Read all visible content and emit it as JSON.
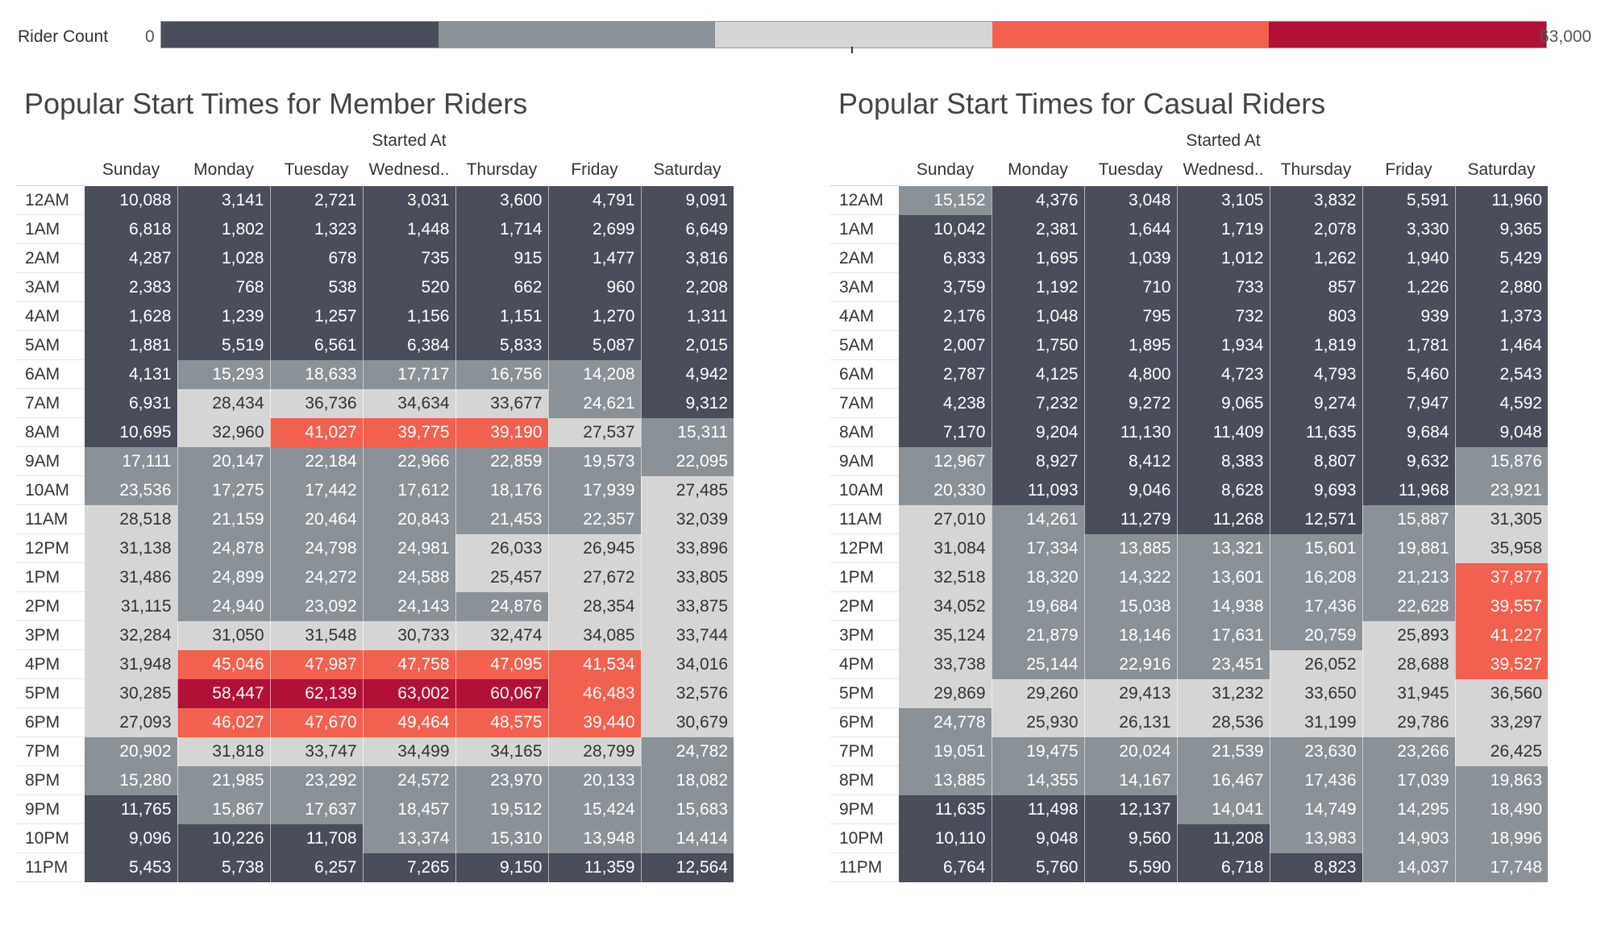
{
  "legend": {
    "title": "Rider Count",
    "min_label": "0",
    "max_label": "63,000",
    "min": 0,
    "max": 63000,
    "colors": [
      "#4a4e5b",
      "#8a9197",
      "#d5d5d5",
      "#f2604f",
      "#b11136"
    ]
  },
  "text_colors": {
    "light": "#ffffff",
    "dark": "#333333"
  },
  "chart_data": [
    {
      "type": "heatmap",
      "title": "Popular Start Times for Member Riders",
      "column_title": "Started At",
      "columns": [
        "Sunday",
        "Monday",
        "Tuesday",
        "Wednesd..",
        "Thursday",
        "Friday",
        "Saturday"
      ],
      "rows": [
        "12AM",
        "1AM",
        "2AM",
        "3AM",
        "4AM",
        "5AM",
        "6AM",
        "7AM",
        "8AM",
        "9AM",
        "10AM",
        "11AM",
        "12PM",
        "1PM",
        "2PM",
        "3PM",
        "4PM",
        "5PM",
        "6PM",
        "7PM",
        "8PM",
        "9PM",
        "10PM",
        "11PM"
      ],
      "values": [
        [
          10088,
          3141,
          2721,
          3031,
          3600,
          4791,
          9091
        ],
        [
          6818,
          1802,
          1323,
          1448,
          1714,
          2699,
          6649
        ],
        [
          4287,
          1028,
          678,
          735,
          915,
          1477,
          3816
        ],
        [
          2383,
          768,
          538,
          520,
          662,
          960,
          2208
        ],
        [
          1628,
          1239,
          1257,
          1156,
          1151,
          1270,
          1311
        ],
        [
          1881,
          5519,
          6561,
          6384,
          5833,
          5087,
          2015
        ],
        [
          4131,
          15293,
          18633,
          17717,
          16756,
          14208,
          4942
        ],
        [
          6931,
          28434,
          36736,
          34634,
          33677,
          24621,
          9312
        ],
        [
          10695,
          32960,
          41027,
          39775,
          39190,
          27537,
          15311
        ],
        [
          17111,
          20147,
          22184,
          22966,
          22859,
          19573,
          22095
        ],
        [
          23536,
          17275,
          17442,
          17612,
          18176,
          17939,
          27485
        ],
        [
          28518,
          21159,
          20464,
          20843,
          21453,
          22357,
          32039
        ],
        [
          31138,
          24878,
          24798,
          24981,
          26033,
          26945,
          33896
        ],
        [
          31486,
          24899,
          24272,
          24588,
          25457,
          27672,
          33805
        ],
        [
          31115,
          24940,
          23092,
          24143,
          24876,
          28354,
          33875
        ],
        [
          32284,
          31050,
          31548,
          30733,
          32474,
          34085,
          33744
        ],
        [
          31948,
          45046,
          47987,
          47758,
          47095,
          41534,
          34016
        ],
        [
          30285,
          58447,
          62139,
          63002,
          60067,
          46483,
          32576
        ],
        [
          27093,
          46027,
          47670,
          49464,
          48575,
          39440,
          30679
        ],
        [
          20902,
          31818,
          33747,
          34499,
          34165,
          28799,
          24782
        ],
        [
          15280,
          21985,
          23292,
          24572,
          23970,
          20133,
          18082
        ],
        [
          11765,
          15867,
          17637,
          18457,
          19512,
          15424,
          15683
        ],
        [
          9096,
          10226,
          11708,
          13374,
          15310,
          13948,
          14414
        ],
        [
          5453,
          5738,
          6257,
          7265,
          9150,
          11359,
          12564
        ]
      ]
    },
    {
      "type": "heatmap",
      "title": "Popular Start Times for Casual Riders",
      "column_title": "Started At",
      "columns": [
        "Sunday",
        "Monday",
        "Tuesday",
        "Wednesd..",
        "Thursday",
        "Friday",
        "Saturday"
      ],
      "rows": [
        "12AM",
        "1AM",
        "2AM",
        "3AM",
        "4AM",
        "5AM",
        "6AM",
        "7AM",
        "8AM",
        "9AM",
        "10AM",
        "11AM",
        "12PM",
        "1PM",
        "2PM",
        "3PM",
        "4PM",
        "5PM",
        "6PM",
        "7PM",
        "8PM",
        "9PM",
        "10PM",
        "11PM"
      ],
      "values": [
        [
          15152,
          4376,
          3048,
          3105,
          3832,
          5591,
          11960
        ],
        [
          10042,
          2381,
          1644,
          1719,
          2078,
          3330,
          9365
        ],
        [
          6833,
          1695,
          1039,
          1012,
          1262,
          1940,
          5429
        ],
        [
          3759,
          1192,
          710,
          733,
          857,
          1226,
          2880
        ],
        [
          2176,
          1048,
          795,
          732,
          803,
          939,
          1373
        ],
        [
          2007,
          1750,
          1895,
          1934,
          1819,
          1781,
          1464
        ],
        [
          2787,
          4125,
          4800,
          4723,
          4793,
          5460,
          2543
        ],
        [
          4238,
          7232,
          9272,
          9065,
          9274,
          7947,
          4592
        ],
        [
          7170,
          9204,
          11130,
          11409,
          11635,
          9684,
          9048
        ],
        [
          12967,
          8927,
          8412,
          8383,
          8807,
          9632,
          15876
        ],
        [
          20330,
          11093,
          9046,
          8628,
          9693,
          11968,
          23921
        ],
        [
          27010,
          14261,
          11279,
          11268,
          12571,
          15887,
          31305
        ],
        [
          31084,
          17334,
          13885,
          13321,
          15601,
          19881,
          35958
        ],
        [
          32518,
          18320,
          14322,
          13601,
          16208,
          21213,
          37877
        ],
        [
          34052,
          19684,
          15038,
          14938,
          17436,
          22628,
          39557
        ],
        [
          35124,
          21879,
          18146,
          17631,
          20759,
          25893,
          41227
        ],
        [
          33738,
          25144,
          22916,
          23451,
          26052,
          28688,
          39527
        ],
        [
          29869,
          29260,
          29413,
          31232,
          33650,
          31945,
          36560
        ],
        [
          24778,
          25930,
          26131,
          28536,
          31199,
          29786,
          33297
        ],
        [
          19051,
          19475,
          20024,
          21539,
          23630,
          23266,
          26425
        ],
        [
          13885,
          14355,
          14167,
          16467,
          17436,
          17039,
          19863
        ],
        [
          11635,
          11498,
          12137,
          14041,
          14749,
          14295,
          18490
        ],
        [
          10110,
          9048,
          9560,
          11208,
          13983,
          14903,
          18996
        ],
        [
          6764,
          5760,
          5590,
          6718,
          8823,
          14037,
          17748
        ]
      ]
    }
  ]
}
